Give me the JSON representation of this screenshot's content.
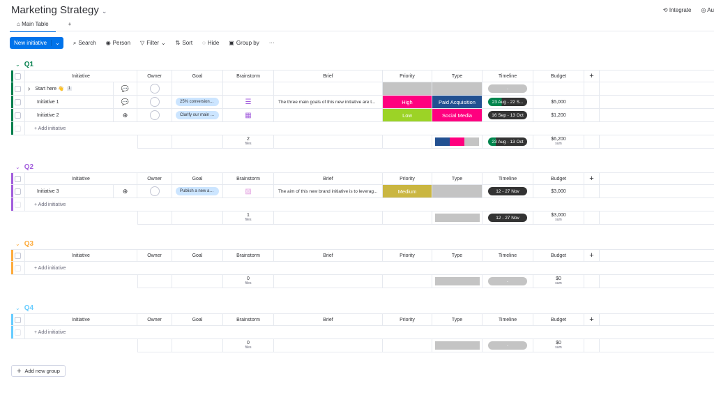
{
  "app": {
    "title": "Marketing Strategy",
    "integrate": "Integrate",
    "automate": "Au"
  },
  "tabs": [
    {
      "label": "Main Table"
    },
    {
      "label": "+"
    }
  ],
  "toolbar": {
    "new": "New initiative",
    "search": "Search",
    "person": "Person",
    "filter": "Filter",
    "sort": "Sort",
    "hide": "Hide",
    "group_by": "Group by",
    "more": "···"
  },
  "columns": [
    "Initiative",
    "Owner",
    "Goal",
    "Brainstorm",
    "Brief",
    "Priority",
    "Type",
    "Timeline",
    "Budget",
    "+"
  ],
  "add_item": "+ Add initiative",
  "add_group": "Add new group",
  "colors": {
    "high": "#ff007f",
    "low": "#9cd326",
    "medium": "#cab641",
    "paid": "#225091",
    "social": "#ff007f",
    "empty": "#c4c4c4",
    "green": "#00854d"
  },
  "groups": [
    {
      "name": "Q1",
      "color": "#037f4c",
      "rows": [
        {
          "name": "Start here 👋",
          "sub": "1",
          "expand": true,
          "update": "1",
          "goal": "",
          "brainstorm": "",
          "brief": "",
          "priority": "",
          "ptype": "",
          "type": "",
          "ttype": "",
          "timeline": "-",
          "tcolor": "#c4c4c4",
          "budget": ""
        },
        {
          "name": "Initiative 1",
          "update": "1",
          "goal": "25% conversion r...",
          "brainstorm": "☰",
          "bcolor": "#a25ddc",
          "brief": "The three main goals of this new initiative are t...",
          "priority": "High",
          "ptype": "high",
          "type": "Paid Acquisition",
          "ttype": "paid",
          "timeline": "23 Aug - 22 S...",
          "tcolor": "#333",
          "tgreen": true,
          "budget": "$5,000"
        },
        {
          "name": "Initiative 2",
          "update": "+",
          "goal": "Clarify our main c...",
          "brainstorm": "▦",
          "bcolor": "#a25ddc",
          "brief": "",
          "priority": "Low",
          "ptype": "low",
          "type": "Social Media",
          "ttype": "social",
          "timeline": "16 Sep - 13 Oct",
          "tcolor": "#333",
          "budget": "$1,200"
        }
      ],
      "summary": {
        "files": "2",
        "files_label": "files",
        "type_dist": [
          "paid",
          "social",
          "empty"
        ],
        "timeline": "23 Aug - 13 Oct",
        "tgreen": true,
        "budget": "$6,200",
        "budget_label": "sum"
      }
    },
    {
      "name": "Q2",
      "color": "#a25ddc",
      "rows": [
        {
          "name": "Initiative 3",
          "update": "+",
          "goal": "Publish a new an...",
          "brainstorm": "▨",
          "bcolor": "#e2a0e0",
          "brief": "The aim of this new brand initiative is to leverag...",
          "priority": "Medium",
          "ptype": "medium",
          "type": "",
          "ttype": "empty",
          "timeline": "12 - 27 Nov",
          "tcolor": "#333",
          "budget": "$3,000"
        }
      ],
      "summary": {
        "files": "1",
        "files_label": "files",
        "type_dist": [
          "empty"
        ],
        "timeline": "12 - 27 Nov",
        "budget": "$3,000",
        "budget_label": "sum"
      }
    },
    {
      "name": "Q3",
      "color": "#fdab3d",
      "rows": [],
      "summary": {
        "files": "0",
        "files_label": "files",
        "type_dist": [
          "empty"
        ],
        "timeline": "-",
        "tempty": true,
        "budget": "$0",
        "budget_label": "sum"
      }
    },
    {
      "name": "Q4",
      "color": "#66ccff",
      "rows": [],
      "summary": {
        "files": "0",
        "files_label": "files",
        "type_dist": [
          "empty"
        ],
        "timeline": "-",
        "tempty": true,
        "budget": "$0",
        "budget_label": "sum"
      }
    }
  ]
}
